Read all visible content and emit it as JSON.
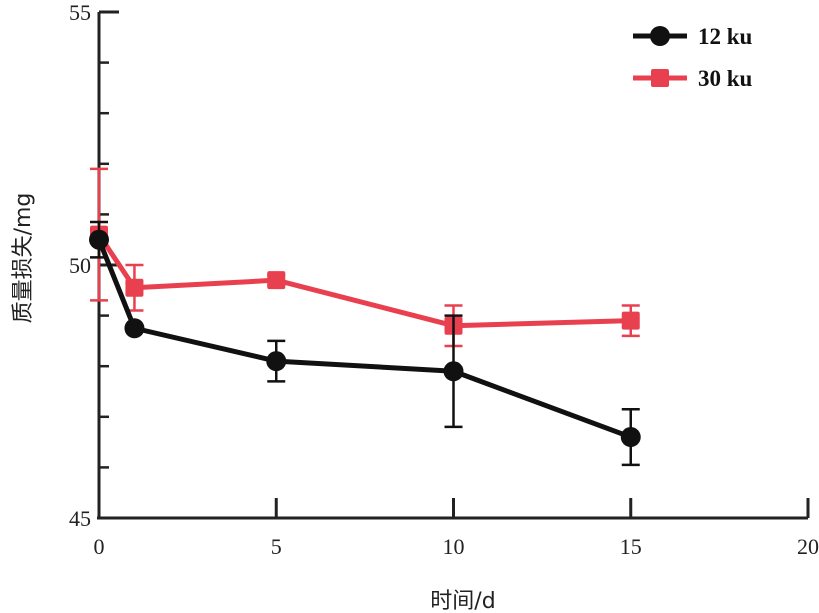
{
  "chart_data": {
    "type": "line",
    "xlabel": "时间/d",
    "ylabel": "质量损失/mg",
    "xlim": [
      0,
      20
    ],
    "ylim": [
      45,
      55
    ],
    "x_ticks": [
      0,
      5,
      10,
      15,
      20
    ],
    "y_ticks": [
      45,
      50,
      55
    ],
    "grid": false,
    "legend_position": "top-right",
    "series": [
      {
        "name": "12 ku",
        "color": "#111111",
        "marker": "circle",
        "x": [
          0,
          1,
          5,
          10,
          15
        ],
        "y": [
          50.5,
          48.75,
          48.1,
          47.9,
          46.6
        ],
        "err": [
          0.35,
          0.0,
          0.4,
          1.1,
          0.55
        ]
      },
      {
        "name": "30 ku",
        "color": "#e8404f",
        "marker": "square",
        "x": [
          0,
          1,
          5,
          10,
          15
        ],
        "y": [
          50.6,
          49.55,
          49.7,
          48.8,
          48.9
        ],
        "err": [
          1.3,
          0.45,
          0.1,
          0.4,
          0.3
        ]
      }
    ]
  }
}
